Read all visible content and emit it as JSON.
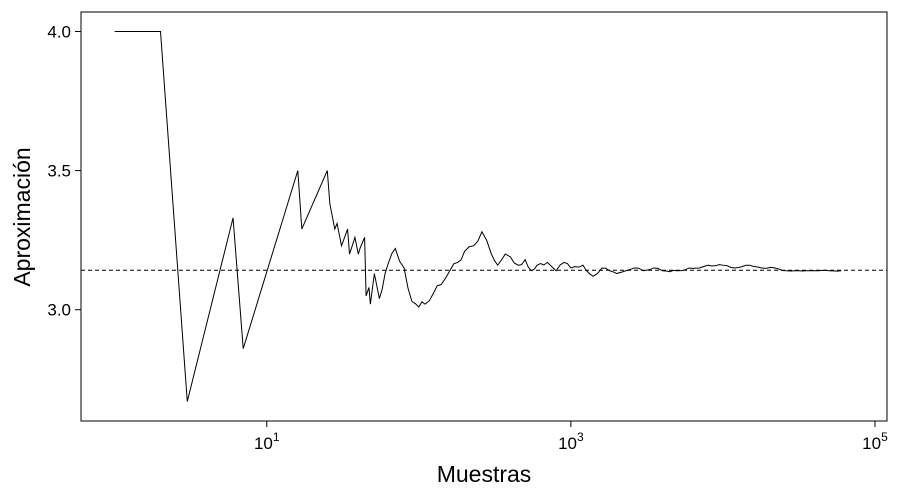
{
  "chart_data": {
    "type": "line",
    "xlabel": "Muestras",
    "ylabel": "Aproximación",
    "x_scale": "log10",
    "xlim": [
      0.6,
      120000
    ],
    "ylim": [
      2.6,
      4.07
    ],
    "grid": false,
    "x_ticks": [
      {
        "value": 10,
        "base": "10",
        "exp": "1"
      },
      {
        "value": 1000,
        "base": "10",
        "exp": "3"
      },
      {
        "value": 100000,
        "base": "10",
        "exp": "5"
      }
    ],
    "y_ticks": [
      {
        "value": 3.0,
        "label": "3.0"
      },
      {
        "value": 3.5,
        "label": "3.5"
      },
      {
        "value": 4.0,
        "label": "4.0"
      }
    ],
    "reference_line": {
      "y": 3.1416,
      "style": "dashed"
    },
    "series": [
      {
        "x": [
          1,
          2,
          3,
          6,
          7,
          16,
          17,
          25,
          26,
          28,
          29,
          31,
          32,
          34,
          35,
          37,
          38,
          40,
          41,
          44,
          45,
          47,
          48,
          51,
          55,
          60,
          70,
          80,
          90,
          100,
          110,
          125,
          140,
          160,
          180,
          200,
          230,
          260,
          300,
          330,
          370,
          400,
          450,
          500,
          550,
          600,
          700,
          800,
          900,
          1000,
          1200,
          1400,
          1600,
          1800,
          2000,
          2300,
          2600,
          3000,
          3500,
          4000,
          5000,
          6000,
          7000,
          8000,
          10000,
          12000,
          15000,
          18000,
          22000,
          26000,
          30000,
          35000,
          42000,
          50000,
          60000
        ],
        "y": [
          4.0,
          4.0,
          2.67,
          3.33,
          2.86,
          3.5,
          3.29,
          3.5,
          3.38,
          3.29,
          3.31,
          3.23,
          3.25,
          3.29,
          3.2,
          3.24,
          3.26,
          3.2,
          3.22,
          3.26,
          3.05,
          3.08,
          3.02,
          3.13,
          3.04,
          3.13,
          3.22,
          3.15,
          3.03,
          3.01,
          3.02,
          3.06,
          3.09,
          3.14,
          3.17,
          3.21,
          3.23,
          3.28,
          3.2,
          3.16,
          3.2,
          3.19,
          3.16,
          3.18,
          3.14,
          3.16,
          3.17,
          3.14,
          3.17,
          3.15,
          3.16,
          3.12,
          3.15,
          3.14,
          3.13,
          3.14,
          3.15,
          3.14,
          3.15,
          3.14,
          3.14,
          3.15,
          3.15,
          3.16,
          3.16,
          3.15,
          3.16,
          3.15,
          3.15,
          3.14,
          3.14,
          3.14,
          3.14,
          3.14,
          3.14
        ]
      }
    ]
  }
}
